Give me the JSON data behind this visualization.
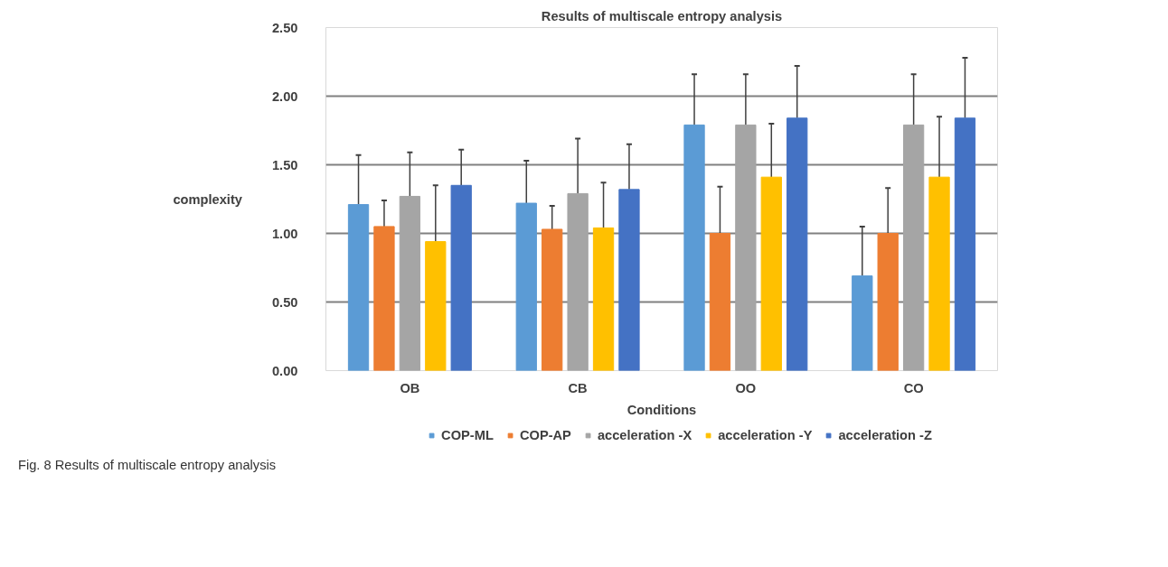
{
  "chart_data": {
    "type": "bar",
    "title": "Results of multiscale entropy analysis",
    "xlabel": "Conditions",
    "ylabel": "complexity",
    "categories": [
      "OB",
      "CB",
      "OO",
      "CO"
    ],
    "series": [
      {
        "name": "COP-ML",
        "color": "#5b9bd5",
        "values": [
          1.21,
          1.22,
          1.79,
          0.69
        ],
        "errors": [
          [
            1.21,
            1.57
          ],
          [
            1.22,
            1.53
          ],
          [
            1.79,
            2.16
          ],
          [
            0.69,
            1.05
          ]
        ]
      },
      {
        "name": "COP-AP",
        "color": "#ed7d31",
        "values": [
          1.05,
          1.03,
          1.0,
          1.0
        ],
        "errors": [
          [
            1.05,
            1.24
          ],
          [
            1.03,
            1.2
          ],
          [
            1.0,
            1.34
          ],
          [
            1.0,
            1.33
          ]
        ]
      },
      {
        "name": "acceleration -X",
        "color": "#a5a5a5",
        "values": [
          1.27,
          1.29,
          1.79,
          1.79
        ],
        "errors": [
          [
            1.27,
            1.59
          ],
          [
            1.29,
            1.69
          ],
          [
            1.79,
            2.16
          ],
          [
            1.79,
            2.16
          ]
        ]
      },
      {
        "name": "acceleration -Y",
        "color": "#ffc000",
        "values": [
          0.94,
          1.04,
          1.41,
          1.41
        ],
        "errors": [
          [
            0.94,
            1.35
          ],
          [
            1.04,
            1.37
          ],
          [
            1.41,
            1.8
          ],
          [
            1.41,
            1.85
          ]
        ]
      },
      {
        "name": "acceleration -Z",
        "color": "#4472c4",
        "values": [
          1.35,
          1.32,
          1.84,
          1.84
        ],
        "errors": [
          [
            1.35,
            1.61
          ],
          [
            1.32,
            1.65
          ],
          [
            1.84,
            2.22
          ],
          [
            1.84,
            2.28
          ]
        ]
      }
    ],
    "ylim": [
      0,
      2.5
    ],
    "yticks": [
      {
        "value": 0,
        "label": "0.00"
      },
      {
        "value": 0.5,
        "label": "0.50"
      },
      {
        "value": 1,
        "label": "1.00"
      },
      {
        "value": 1.5,
        "label": "1.50"
      },
      {
        "value": 2,
        "label": "2.00"
      },
      {
        "value": 2.5,
        "label": "2.50"
      }
    ],
    "grid": "y",
    "legend": "bottom",
    "annotations": [
      "Fig. 8 Results of multiscale entropy analysis"
    ]
  }
}
